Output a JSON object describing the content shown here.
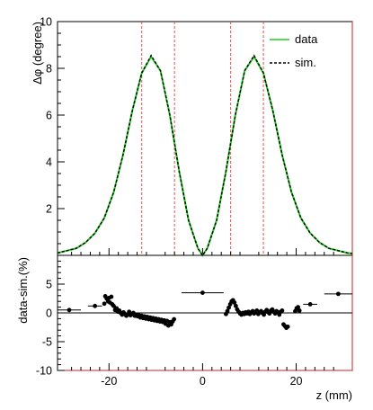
{
  "chart_data": [
    {
      "type": "line",
      "panel": "top",
      "ylabel": "Δφ (degree)",
      "xlim": [
        -31,
        32
      ],
      "ylim": [
        0,
        10
      ],
      "yticks": [
        2,
        4,
        6,
        8,
        10
      ],
      "grid": false,
      "legend_position": "top-right",
      "series": [
        {
          "name": "data",
          "style": "solid",
          "color": "#22cc22",
          "x": [
            -31,
            -29,
            -27,
            -25,
            -23,
            -21,
            -19,
            -17,
            -15,
            -13,
            -11,
            -9,
            -7,
            -5,
            -3,
            -1,
            0,
            1,
            3,
            5,
            7,
            9,
            11,
            13,
            15,
            17,
            19,
            21,
            23,
            25,
            27,
            29,
            31,
            32
          ],
          "y": [
            0.1,
            0.2,
            0.3,
            0.55,
            0.95,
            1.6,
            2.7,
            4.3,
            6.2,
            7.8,
            8.5,
            7.9,
            6.0,
            3.6,
            1.5,
            0.3,
            0.0,
            0.3,
            1.5,
            3.6,
            6.0,
            7.9,
            8.5,
            7.8,
            6.2,
            4.3,
            2.7,
            1.6,
            0.95,
            0.55,
            0.3,
            0.2,
            0.1,
            0.08
          ]
        },
        {
          "name": "sim.",
          "style": "dashed",
          "color": "#000000",
          "x": [
            -31,
            -29,
            -27,
            -25,
            -23,
            -21,
            -19,
            -17,
            -15,
            -13,
            -11,
            -9,
            -7,
            -5,
            -3,
            -1,
            0,
            1,
            3,
            5,
            7,
            9,
            11,
            13,
            15,
            17,
            19,
            21,
            23,
            25,
            27,
            29,
            31,
            32
          ],
          "y": [
            0.1,
            0.2,
            0.3,
            0.55,
            0.95,
            1.6,
            2.7,
            4.3,
            6.2,
            7.8,
            8.55,
            7.9,
            6.0,
            3.6,
            1.5,
            0.3,
            0.0,
            0.3,
            1.5,
            3.6,
            6.0,
            7.9,
            8.55,
            7.8,
            6.2,
            4.3,
            2.7,
            1.6,
            0.95,
            0.55,
            0.3,
            0.2,
            0.1,
            0.08
          ]
        }
      ],
      "vlines": {
        "color": "#e05050",
        "x": [
          -13,
          -6,
          6,
          13
        ]
      }
    },
    {
      "type": "scatter",
      "panel": "bottom",
      "xlabel": "z (mm)",
      "ylabel": "data-sim.(%)",
      "xlim": [
        -31,
        32
      ],
      "ylim": [
        -10,
        10
      ],
      "xticks": [
        -20,
        0,
        20
      ],
      "yticks": [
        -10,
        -5,
        0,
        5
      ],
      "grid": false,
      "reference_line_y": 0,
      "points": [
        {
          "x": -28.5,
          "y": 0.5,
          "xerr": 2.5
        },
        {
          "x": -23.0,
          "y": 1.2,
          "xerr": 1.5
        },
        {
          "x": 29.0,
          "y": 3.3,
          "xerr": 3.0
        },
        {
          "x": 23.0,
          "y": 1.5,
          "xerr": 1.5
        },
        {
          "x": 0.0,
          "y": 3.5,
          "xerr": 4.5
        },
        {
          "x": -21.0,
          "y": 1.6
        },
        {
          "x": -20.8,
          "y": 2.9
        },
        {
          "x": -20.5,
          "y": 2.5
        },
        {
          "x": -20.2,
          "y": 2.0
        },
        {
          "x": -20.0,
          "y": 2.6
        },
        {
          "x": -19.8,
          "y": 1.8
        },
        {
          "x": -19.5,
          "y": 2.8
        },
        {
          "x": -19.3,
          "y": 1.5
        },
        {
          "x": -19.0,
          "y": 1.2
        },
        {
          "x": -18.7,
          "y": 0.5
        },
        {
          "x": -18.4,
          "y": 0.8
        },
        {
          "x": -18.1,
          "y": 0.2
        },
        {
          "x": -17.8,
          "y": 0.4
        },
        {
          "x": -17.5,
          "y": 0.0
        },
        {
          "x": -17.2,
          "y": -0.3
        },
        {
          "x": -16.9,
          "y": 0.1
        },
        {
          "x": -16.6,
          "y": -0.2
        },
        {
          "x": -16.3,
          "y": -0.5
        },
        {
          "x": -16.0,
          "y": -0.3
        },
        {
          "x": -15.7,
          "y": 0.2
        },
        {
          "x": -15.4,
          "y": -0.4
        },
        {
          "x": -15.1,
          "y": -0.2
        },
        {
          "x": -14.8,
          "y": 0.0
        },
        {
          "x": -14.5,
          "y": -0.5
        },
        {
          "x": -14.2,
          "y": -0.3
        },
        {
          "x": -13.9,
          "y": -0.6
        },
        {
          "x": -13.6,
          "y": -0.4
        },
        {
          "x": -13.3,
          "y": -0.8
        },
        {
          "x": -13.0,
          "y": -0.5
        },
        {
          "x": -12.7,
          "y": -0.9
        },
        {
          "x": -12.4,
          "y": -0.6
        },
        {
          "x": -12.1,
          "y": -1.0
        },
        {
          "x": -11.8,
          "y": -0.7
        },
        {
          "x": -11.5,
          "y": -1.1
        },
        {
          "x": -11.2,
          "y": -0.8
        },
        {
          "x": -10.9,
          "y": -1.2
        },
        {
          "x": -10.6,
          "y": -0.9
        },
        {
          "x": -10.3,
          "y": -1.3
        },
        {
          "x": -10.0,
          "y": -1.0
        },
        {
          "x": -9.7,
          "y": -1.4
        },
        {
          "x": -9.4,
          "y": -1.1
        },
        {
          "x": -9.1,
          "y": -1.5
        },
        {
          "x": -8.8,
          "y": -1.2
        },
        {
          "x": -8.5,
          "y": -1.6
        },
        {
          "x": -8.2,
          "y": -1.3
        },
        {
          "x": -7.9,
          "y": -1.9
        },
        {
          "x": -7.6,
          "y": -1.4
        },
        {
          "x": -7.3,
          "y": -2.2
        },
        {
          "x": -7.0,
          "y": -1.6
        },
        {
          "x": -6.7,
          "y": -2.0
        },
        {
          "x": -6.4,
          "y": -1.5
        },
        {
          "x": -6.1,
          "y": -1.1
        },
        {
          "x": 5.0,
          "y": -0.2
        },
        {
          "x": 5.3,
          "y": 0.3
        },
        {
          "x": 5.6,
          "y": 0.9
        },
        {
          "x": 5.9,
          "y": 1.5
        },
        {
          "x": 6.2,
          "y": 2.0
        },
        {
          "x": 6.5,
          "y": 2.2
        },
        {
          "x": 6.8,
          "y": 1.8
        },
        {
          "x": 7.1,
          "y": 1.2
        },
        {
          "x": 7.4,
          "y": 0.6
        },
        {
          "x": 7.7,
          "y": 0.2
        },
        {
          "x": 8.0,
          "y": -0.1
        },
        {
          "x": 8.3,
          "y": -0.3
        },
        {
          "x": 8.6,
          "y": 0.0
        },
        {
          "x": 8.9,
          "y": -0.2
        },
        {
          "x": 9.2,
          "y": 0.1
        },
        {
          "x": 9.5,
          "y": -0.1
        },
        {
          "x": 9.8,
          "y": 0.2
        },
        {
          "x": 10.1,
          "y": -0.2
        },
        {
          "x": 10.4,
          "y": 0.1
        },
        {
          "x": 10.7,
          "y": 0.3
        },
        {
          "x": 11.0,
          "y": -0.1
        },
        {
          "x": 11.3,
          "y": 0.2
        },
        {
          "x": 11.6,
          "y": 0.4
        },
        {
          "x": 11.9,
          "y": -0.2
        },
        {
          "x": 12.2,
          "y": 0.1
        },
        {
          "x": 12.5,
          "y": 0.3
        },
        {
          "x": 12.8,
          "y": 0.0
        },
        {
          "x": 13.1,
          "y": -0.3
        },
        {
          "x": 13.4,
          "y": 0.2
        },
        {
          "x": 13.7,
          "y": 0.5
        },
        {
          "x": 14.0,
          "y": 0.1
        },
        {
          "x": 14.3,
          "y": -0.1
        },
        {
          "x": 14.6,
          "y": 0.4
        },
        {
          "x": 14.9,
          "y": 0.6
        },
        {
          "x": 15.2,
          "y": 0.2
        },
        {
          "x": 15.5,
          "y": -0.1
        },
        {
          "x": 15.8,
          "y": 0.3
        },
        {
          "x": 16.1,
          "y": 0.1
        },
        {
          "x": 16.4,
          "y": -0.3
        },
        {
          "x": 16.7,
          "y": 0.2
        },
        {
          "x": 17.0,
          "y": 0.4
        },
        {
          "x": 17.3,
          "y": -2.0
        },
        {
          "x": 17.6,
          "y": -2.3
        },
        {
          "x": 17.9,
          "y": -2.6
        },
        {
          "x": 18.2,
          "y": -2.4
        },
        {
          "x": 19.8,
          "y": 0.3
        },
        {
          "x": 20.1,
          "y": 0.8
        },
        {
          "x": 20.4,
          "y": 1.0
        },
        {
          "x": 20.7,
          "y": 0.4
        }
      ]
    }
  ],
  "colors": {
    "frame": "#000000",
    "frame_edge": "#cc2222",
    "data_line": "#22cc22",
    "sim_line": "#000000",
    "vline": "#e05050"
  }
}
